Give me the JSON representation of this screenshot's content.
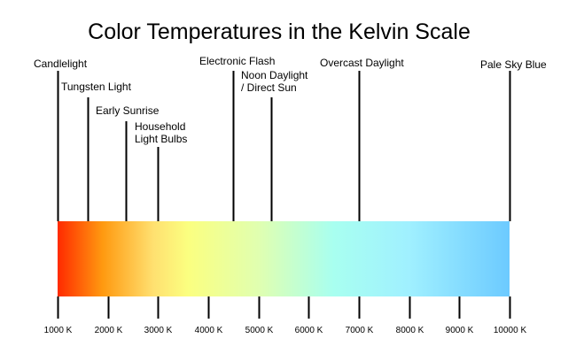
{
  "title": "Color Temperatures in the Kelvin Scale",
  "scale": {
    "min": 1000,
    "max": 10000,
    "ticks": [
      {
        "value": 1000,
        "label": "1000 K"
      },
      {
        "value": 2000,
        "label": "2000 K"
      },
      {
        "value": 3000,
        "label": "3000 K"
      },
      {
        "value": 4000,
        "label": "4000 K"
      },
      {
        "value": 5000,
        "label": "5000 K"
      },
      {
        "value": 6000,
        "label": "6000 K"
      },
      {
        "value": 7000,
        "label": "7000 K"
      },
      {
        "value": 8000,
        "label": "8000 K"
      },
      {
        "value": 9000,
        "label": "9000 K"
      },
      {
        "value": 10000,
        "label": "10000 K"
      }
    ]
  },
  "gradient_colors": [
    {
      "kelvin": 1000,
      "color": "#ff2a00"
    },
    {
      "kelvin": 1900,
      "color": "#ff9a10"
    },
    {
      "kelvin": 2900,
      "color": "#ffe070"
    },
    {
      "kelvin": 3600,
      "color": "#fbff80"
    },
    {
      "kelvin": 5000,
      "color": "#e0ffb0"
    },
    {
      "kelvin": 6500,
      "color": "#a8fff0"
    },
    {
      "kelvin": 8000,
      "color": "#a0f0ff"
    },
    {
      "kelvin": 10000,
      "color": "#6ccaff"
    }
  ],
  "markers": [
    {
      "id": "candlelight",
      "lines": [
        "Candlelight"
      ],
      "kelvin": 1000
    },
    {
      "id": "tungsten-light",
      "lines": [
        "Tungsten Light"
      ],
      "kelvin": 1600
    },
    {
      "id": "early-sunrise",
      "lines": [
        "Early Sunrise"
      ],
      "kelvin": 2350
    },
    {
      "id": "household-light-bulbs",
      "lines": [
        "Household",
        "Light Bulbs"
      ],
      "kelvin": 3000
    },
    {
      "id": "electronic-flash",
      "lines": [
        "Electronic Flash"
      ],
      "kelvin": 4500
    },
    {
      "id": "noon-daylight",
      "lines": [
        "Noon Daylight",
        "/ Direct Sun"
      ],
      "kelvin": 5250
    },
    {
      "id": "overcast-daylight",
      "lines": [
        "Overcast Daylight"
      ],
      "kelvin": 7000
    },
    {
      "id": "pale-sky-blue",
      "lines": [
        "Pale Sky Blue"
      ],
      "kelvin": 10000
    }
  ]
}
